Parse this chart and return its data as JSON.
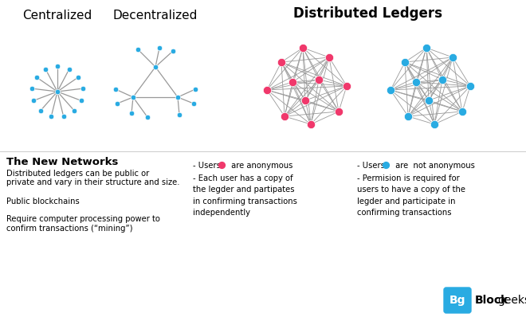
{
  "bg_color": "#ffffff",
  "node_color_blue": "#29ABE2",
  "node_color_pink": "#F0386B",
  "edge_color": "#999999",
  "title_centralized": "Centralized",
  "title_decentralized": "Decentralized",
  "title_distributed": "Distributed Ledgers",
  "section_title": "The New Networks",
  "text_col1": [
    "Distributed ledgers can be public or",
    "private and vary in their structure and size.",
    "",
    "Public blockchains",
    "",
    "Require computer processing power to",
    "confirm transactions (“mining”)"
  ],
  "text_col2_rest": "- Each user has a copy of\nthe legder and partipates\nin confirming transactions\nindependently",
  "text_col3_rest": "- Permision is required for\nusers to have a copy of the\nlegder and participate in\nconfirming transactions",
  "font_title": 11,
  "font_section": 9.5,
  "font_body": 7.2,
  "logo_box_color": "#29ABE2"
}
